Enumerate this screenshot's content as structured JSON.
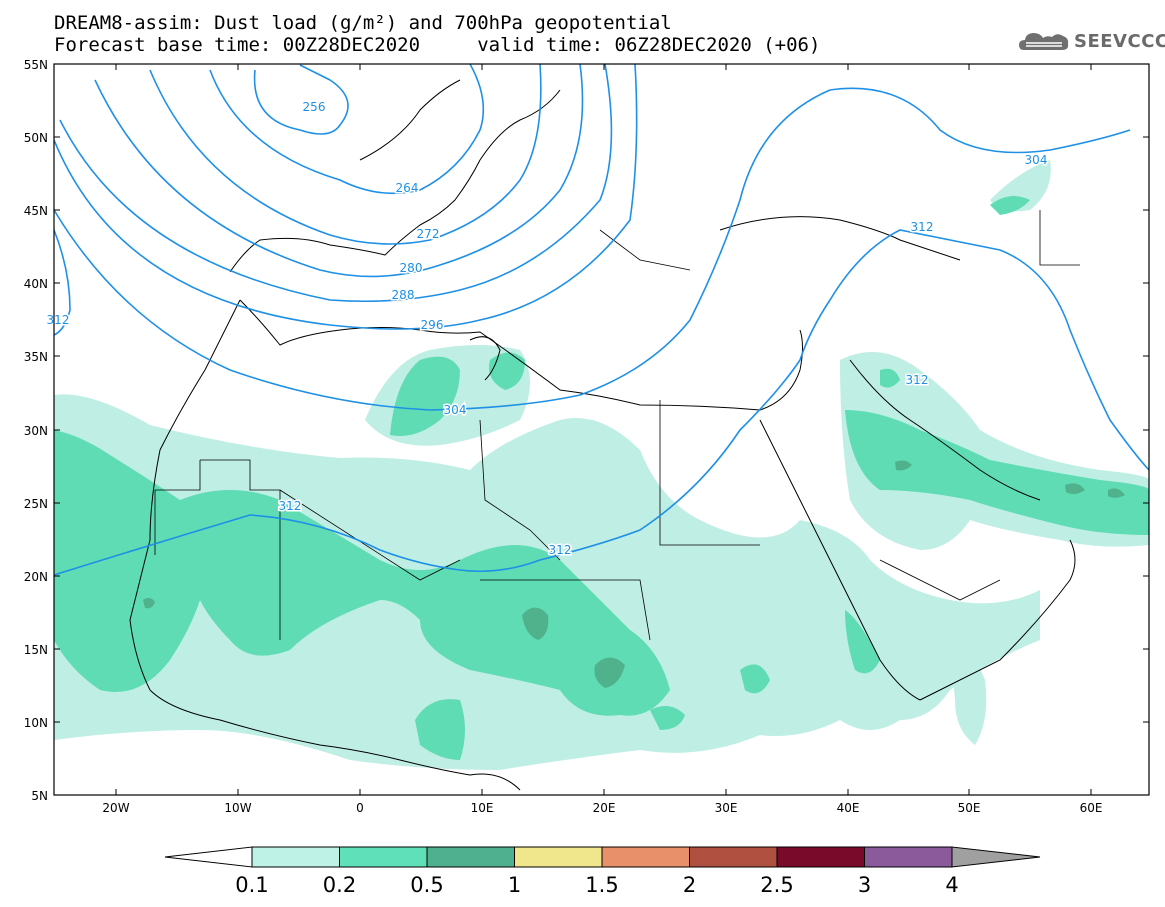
{
  "header": {
    "title_line1": "DREAM8-assim: Dust load (g/m²) and 700hPa geopotential",
    "title_line2": "Forecast base time: 00Z28DEC2020     valid time: 06Z28DEC2020 (+06)"
  },
  "logo": {
    "text": "SEEVCCC",
    "icon": "cloud-icon"
  },
  "map": {
    "lat_labels": [
      "55N",
      "50N",
      "45N",
      "40N",
      "35N",
      "30N",
      "25N",
      "20N",
      "15N",
      "10N",
      "5N"
    ],
    "lon_labels": [
      "20W",
      "10W",
      "0",
      "10E",
      "20E",
      "30E",
      "40E",
      "50E",
      "60E"
    ],
    "contour_labels": [
      "256",
      "264",
      "272",
      "280",
      "288",
      "296",
      "304",
      "312",
      "312",
      "312",
      "304",
      "312",
      "312"
    ],
    "contour_color": "#1e90e6",
    "dust_colors": {
      "0.1": "#bfeee4",
      "0.2": "#5fdcb4",
      "0.5": "#4fb28c"
    }
  },
  "colorbar": {
    "ticks": [
      "0.1",
      "0.2",
      "0.5",
      "1",
      "1.5",
      "2",
      "2.5",
      "3",
      "4"
    ],
    "colors": [
      "#bff2e6",
      "#5fe0b8",
      "#4fb090",
      "#f0e68c",
      "#e8906a",
      "#b05040",
      "#7a0a2a",
      "#8a5a9a"
    ],
    "below_color": "#ffffff",
    "above_color": "#a0a0a0"
  }
}
